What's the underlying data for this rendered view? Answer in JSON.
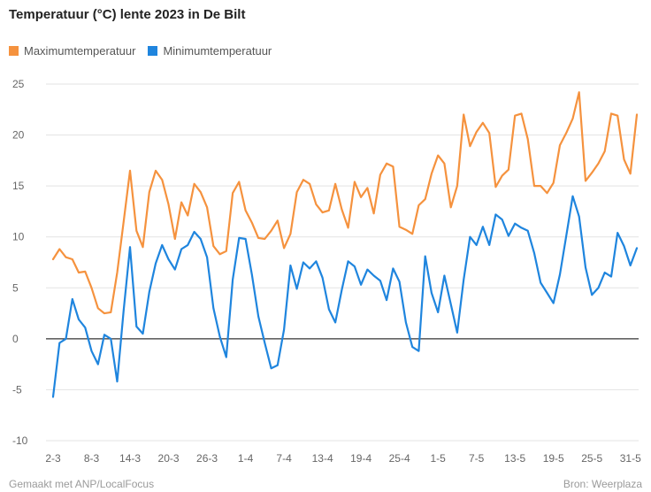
{
  "chart_data": {
    "type": "line",
    "title": "Temperatuur (°C) lente 2023 in De Bilt",
    "xlabel": "",
    "ylabel": "",
    "ylim": [
      -10,
      25
    ],
    "yticks": [
      25,
      20,
      15,
      10,
      5,
      0,
      -5,
      -10
    ],
    "xtick_labels": [
      "2-3",
      "8-3",
      "14-3",
      "20-3",
      "26-3",
      "1-4",
      "7-4",
      "13-4",
      "19-4",
      "25-4",
      "1-5",
      "7-5",
      "13-5",
      "19-5",
      "25-5",
      "31-5"
    ],
    "legend": "top-left",
    "grid": true,
    "series": [
      {
        "name": "Maximumtemperatuur",
        "color": "#f5923e",
        "values": [
          7.8,
          8.8,
          8.0,
          7.8,
          6.5,
          6.6,
          5.0,
          3.0,
          2.5,
          2.6,
          6.5,
          11.5,
          16.5,
          10.6,
          9.0,
          14.4,
          16.5,
          15.6,
          13.2,
          9.8,
          13.4,
          12.1,
          15.2,
          14.4,
          12.9,
          9.1,
          8.3,
          8.6,
          14.3,
          15.4,
          12.6,
          11.4,
          9.9,
          9.8,
          10.6,
          11.6,
          8.9,
          10.3,
          14.4,
          15.6,
          15.2,
          13.2,
          12.4,
          12.6,
          15.2,
          12.7,
          10.9,
          15.4,
          13.9,
          14.8,
          12.3,
          16.1,
          17.2,
          16.9,
          11.0,
          10.7,
          10.3,
          13.1,
          13.7,
          16.2,
          18.0,
          17.2,
          12.9,
          15.0,
          22.0,
          18.9,
          20.3,
          21.2,
          20.2,
          14.9,
          16.0,
          16.6,
          21.9,
          22.1,
          19.6,
          15.0,
          15.0,
          14.3,
          15.3,
          19.0,
          20.2,
          21.6,
          24.2,
          15.5,
          16.3,
          17.2,
          18.4,
          22.1,
          21.9,
          17.6,
          16.2,
          22.0
        ]
      },
      {
        "name": "Minimumtemperatuur",
        "color": "#1f85de",
        "values": [
          -5.7,
          -0.4,
          0.0,
          3.9,
          1.9,
          1.1,
          -1.2,
          -2.5,
          0.4,
          0.0,
          -4.2,
          2.8,
          9.0,
          1.2,
          0.5,
          4.6,
          7.4,
          9.2,
          7.8,
          6.8,
          8.8,
          9.2,
          10.5,
          9.8,
          8.0,
          3.0,
          0.2,
          -1.8,
          5.8,
          9.9,
          9.8,
          6.3,
          2.2,
          -0.4,
          -2.9,
          -2.6,
          0.9,
          7.2,
          4.9,
          7.5,
          6.9,
          7.6,
          6.0,
          2.9,
          1.6,
          4.8,
          7.6,
          7.1,
          5.3,
          6.8,
          6.2,
          5.7,
          3.8,
          6.9,
          5.6,
          1.6,
          -0.8,
          -1.2,
          8.1,
          4.5,
          2.6,
          6.2,
          3.4,
          0.6,
          5.8,
          10.0,
          9.2,
          11.0,
          9.2,
          12.2,
          11.7,
          10.1,
          11.3,
          10.9,
          10.6,
          8.4,
          5.5,
          4.5,
          3.5,
          6.3,
          10.1,
          14.0,
          12.0,
          7.0,
          4.3,
          5.0,
          6.5,
          6.1,
          10.4,
          9.1,
          7.2,
          8.9
        ]
      }
    ]
  },
  "footer": {
    "made_with": "Gemaakt met ANP/LocalFocus",
    "source": "Bron: Weerplaza"
  }
}
